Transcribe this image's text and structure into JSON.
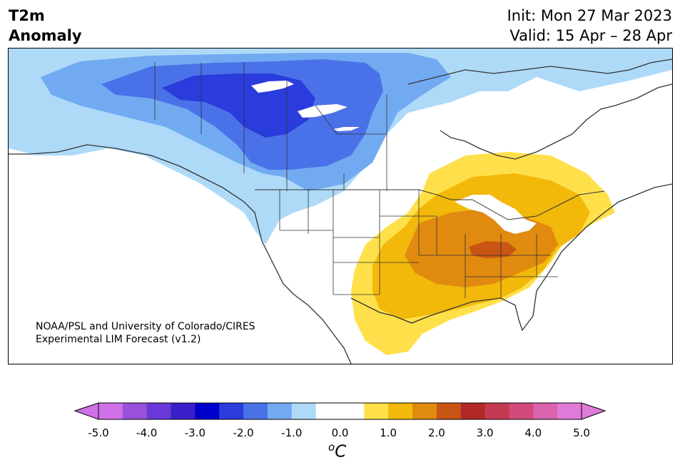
{
  "title": {
    "line1": "T2m",
    "line2": "Anomaly"
  },
  "dates": {
    "init": "Init: Mon 27 Mar 2023",
    "valid": "Valid: 15 Apr – 28 Apr"
  },
  "credit": {
    "line1": "NOAA/PSL and University of Colorado/CIRES",
    "line2": "Experimental LIM Forecast (v1.2)"
  },
  "colorbar": {
    "ticks": [
      "-5.0",
      "-4.0",
      "-3.0",
      "-2.0",
      "-1.0",
      "0.0",
      "1.0",
      "2.0",
      "3.0",
      "4.0",
      "5.0"
    ],
    "unit_sup": "o",
    "unit": "C",
    "colors": [
      "#d070e8",
      "#9a50d8",
      "#6a38d8",
      "#3a20c8",
      "#0000cc",
      "#2a3cdc",
      "#4a72e8",
      "#72aaf2",
      "#aedaf8",
      "#ffffff",
      "#ffffff",
      "#ffe04a",
      "#f2b80a",
      "#e08a10",
      "#c85514",
      "#b02828",
      "#c43a50",
      "#d04a7c",
      "#da64b0",
      "#e07ad8"
    ]
  },
  "map": {
    "region": "North America",
    "variable": "2m temperature anomaly",
    "colors": {
      "cold1": "#aedaf8",
      "cold2": "#72aaf2",
      "cold3": "#4a72e8",
      "cold4": "#2a3cdc",
      "warm1": "#ffe04a",
      "warm2": "#f2b80a",
      "warm3": "#e08a10",
      "warm4": "#c85514"
    }
  }
}
